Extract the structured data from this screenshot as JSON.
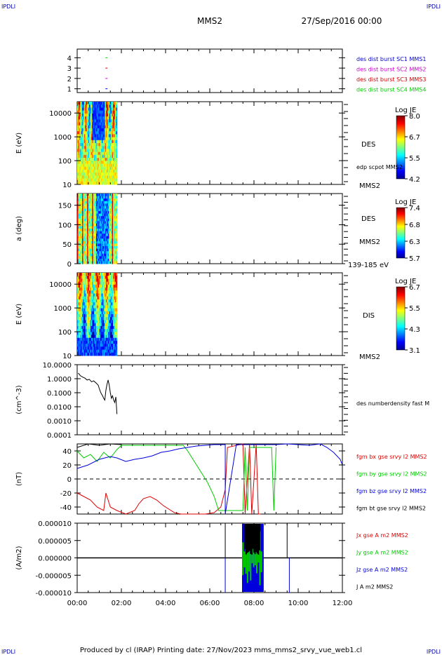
{
  "corner_labels": {
    "tl": "IPDLI",
    "tr": "IPDLI",
    "bl": "IPDLI",
    "br": "IPDLI"
  },
  "header": {
    "spacecraft": "MMS2",
    "date": "27/Sep/2016 00:00"
  },
  "footer": {
    "text": "Produced by cl (IRAP)   Printing date: 27/Nov/2023   mms_mms2_srvy_vue_web1.cl"
  },
  "colors": {
    "mms1": "#0000cc",
    "mms2": "#cc00cc",
    "mms3": "#cc0000",
    "mms4": "#00cc00",
    "red": "#dd0000",
    "green": "#00cc00",
    "blue": "#0000dd",
    "black": "#000000"
  },
  "chart_data": [
    {
      "type": "scatter",
      "panel": "burst",
      "yticks": [
        "1",
        "2",
        "3",
        "4"
      ],
      "xlim": [
        0,
        12
      ],
      "legend": [
        {
          "name": "des dist burst SC1 MMS1",
          "color": "#0000cc"
        },
        {
          "name": "des dist burst SC2 MMS2",
          "color": "#cc00cc"
        },
        {
          "name": "des dist burst SC3 MMS3",
          "color": "#cc0000"
        },
        {
          "name": "des dist burst SC4 MMS4",
          "color": "#00cc00"
        }
      ],
      "series": [
        {
          "sc": 4,
          "x": [
            1.31
          ]
        },
        {
          "sc": 3,
          "x": [
            1.31
          ]
        },
        {
          "sc": 2,
          "x": [
            1.31
          ]
        },
        {
          "sc": 1,
          "x": [
            1.31
          ]
        }
      ]
    },
    {
      "type": "heatmap",
      "panel": "des-energy",
      "ylabel": "E (eV)",
      "yscale": "log",
      "ylim": [
        10,
        30000
      ],
      "yticks": [
        "10000",
        "1000",
        "100",
        "10"
      ],
      "xlim": [
        0,
        12
      ],
      "data_x_range": [
        0,
        1.8
      ],
      "right_labels": [
        "DES",
        "edp scpot MMS2",
        "MMS2"
      ],
      "colorbar": {
        "title": "Log JE",
        "ticks": [
          "8.0",
          "6.7",
          "5.5",
          "4.2"
        ]
      }
    },
    {
      "type": "heatmap",
      "panel": "des-pitch",
      "ylabel": "a (deg)",
      "ylim": [
        0,
        180
      ],
      "yticks": [
        "150",
        "100",
        "50",
        "0"
      ],
      "xlim": [
        0,
        12
      ],
      "data_x_range": [
        0,
        1.8
      ],
      "right_labels": [
        "DES",
        "MMS2",
        "139-185 eV"
      ],
      "colorbar": {
        "title": "Log JE",
        "ticks": [
          "7.4",
          "6.8",
          "6.3",
          "5.7"
        ]
      }
    },
    {
      "type": "heatmap",
      "panel": "dis-energy",
      "ylabel": "E (eV)",
      "yscale": "log",
      "ylim": [
        10,
        30000
      ],
      "yticks": [
        "10000",
        "1000",
        "100",
        "10"
      ],
      "xlim": [
        0,
        12
      ],
      "data_x_range": [
        0,
        1.8
      ],
      "right_labels": [
        "DIS",
        "MMS2"
      ],
      "colorbar": {
        "title": "Log JE",
        "ticks": [
          "6.7",
          "5.5",
          "4.3",
          "3.1"
        ]
      }
    },
    {
      "type": "line",
      "panel": "density",
      "ylabel": "(cm^-3)",
      "yscale": "log",
      "ylim": [
        0.0001,
        10
      ],
      "yticks": [
        "10.0000",
        "1.0000",
        "0.1000",
        "0.0100",
        "0.0010",
        "0.0001"
      ],
      "xlim": [
        0,
        12
      ],
      "legend": [
        "des numberdensity fast M"
      ],
      "series": [
        {
          "x": [
            0.05,
            0.15,
            0.25,
            0.35,
            0.45,
            0.55,
            0.65,
            0.75,
            0.85,
            0.95,
            1.0,
            1.05,
            1.1,
            1.15,
            1.2,
            1.25,
            1.3,
            1.35,
            1.4,
            1.45,
            1.5,
            1.55,
            1.6,
            1.65,
            1.7,
            1.75,
            1.8
          ],
          "y": [
            2.5,
            1.6,
            1.3,
            1.1,
            0.8,
            0.9,
            0.6,
            0.7,
            0.5,
            0.35,
            0.2,
            0.12,
            0.08,
            0.06,
            0.04,
            0.03,
            0.15,
            0.4,
            0.8,
            0.35,
            0.1,
            0.04,
            0.06,
            0.03,
            0.02,
            0.05,
            0.003
          ]
        }
      ]
    },
    {
      "type": "line",
      "panel": "fgm",
      "ylabel": "(nT)",
      "ylim": [
        -50,
        50
      ],
      "yticks": [
        "40",
        "20",
        "0",
        "-20",
        "-40"
      ],
      "xlim": [
        0,
        12
      ],
      "legend": [
        {
          "name": "fgm bx gse srvy l2 MMS2",
          "color": "#dd0000"
        },
        {
          "name": "fgm by gse srvy l2 MMS2",
          "color": "#00cc00"
        },
        {
          "name": "fgm bz gse srvy l2 MMS2",
          "color": "#0000dd"
        },
        {
          "name": "fgm bt gse srvy l2 MMS2",
          "color": "#000000"
        }
      ],
      "series": [
        {
          "name": "bx",
          "x": [
            0,
            0.3,
            0.6,
            0.9,
            1.2,
            1.3,
            1.5,
            1.8,
            2.2,
            2.6,
            2.8,
            3.0,
            3.3,
            3.6,
            3.9,
            4.1,
            4.4,
            4.7,
            5.0,
            5.4,
            5.8,
            6.2,
            6.5,
            6.7,
            6.8,
            7.5,
            7.6,
            7.8,
            7.9,
            8.1,
            8.2,
            8.3
          ],
          "y": [
            -20,
            -25,
            -30,
            -40,
            -45,
            -20,
            -40,
            -45,
            -50,
            -45,
            -35,
            -28,
            -25,
            -30,
            -38,
            -42,
            -48,
            -50,
            -50,
            -50,
            -50,
            -48,
            -40,
            -15,
            45,
            50,
            -50,
            50,
            -50,
            50,
            -50,
            -50
          ]
        },
        {
          "name": "by",
          "x": [
            0,
            0.3,
            0.6,
            0.9,
            1.2,
            1.5,
            1.8,
            2.0,
            4.8,
            5.0,
            5.3,
            5.6,
            5.9,
            6.2,
            6.4,
            7.5,
            7.6,
            7.7,
            7.8,
            8.8,
            8.9,
            9.0
          ],
          "y": [
            40,
            30,
            35,
            25,
            38,
            30,
            42,
            48,
            48,
            40,
            25,
            10,
            -5,
            -25,
            -45,
            -45,
            45,
            -45,
            45,
            45,
            -45,
            45
          ]
        },
        {
          "name": "bz",
          "x": [
            0,
            0.5,
            1.0,
            1.5,
            1.8,
            2.2,
            2.6,
            3.0,
            3.4,
            3.8,
            4.2,
            4.6,
            5.0,
            5.4,
            5.8,
            6.2,
            6.5,
            6.7,
            6.7,
            7.2,
            8.5,
            9.0,
            9.5,
            10.0,
            10.5,
            11.0,
            11.3,
            11.6,
            11.9,
            12.0
          ],
          "y": [
            15,
            20,
            28,
            32,
            30,
            25,
            28,
            30,
            33,
            38,
            40,
            43,
            45,
            47,
            48,
            49,
            49,
            49,
            -50,
            49,
            49,
            49,
            50,
            49,
            48,
            50,
            45,
            38,
            28,
            20
          ]
        },
        {
          "name": "bt",
          "x": [
            0,
            0.5,
            1.0,
            1.5,
            2.0
          ],
          "y": [
            45,
            50,
            48,
            50,
            49
          ]
        }
      ]
    },
    {
      "type": "line",
      "panel": "current",
      "ylabel": "(A/m2)",
      "ylim": [
        -1e-05,
        1e-05
      ],
      "yticks": [
        "0.000010",
        "0.000005",
        "0.000000",
        "-0.000005",
        "-0.000010"
      ],
      "xlim": [
        0,
        12
      ],
      "xticks": [
        "00:00",
        "02:00",
        "04:00",
        "06:00",
        "08:00",
        "10:00",
        "12:00"
      ],
      "legend": [
        {
          "name": "Jx gse A m2 MMS2",
          "color": "#dd0000"
        },
        {
          "name": "Jy gse A m2 MMS2",
          "color": "#00cc00"
        },
        {
          "name": "Jz gse A m2 MMS2",
          "color": "#0000dd"
        },
        {
          "name": "J A m2 MMS2",
          "color": "#000000"
        }
      ]
    }
  ]
}
